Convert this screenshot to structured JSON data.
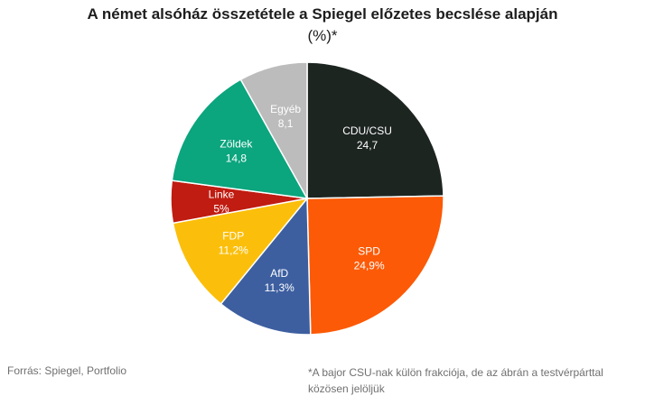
{
  "chart_data": {
    "type": "pie",
    "title": "A német alsóház összetétele a Spiegel előzetes becslése alapján",
    "subtitle": "(%)*",
    "slices": [
      {
        "label": "CDU/CSU",
        "value": 24.7,
        "value_text": "24,7",
        "color": "#1d2521"
      },
      {
        "label": "SPD",
        "value": 24.9,
        "value_text": "24,9%",
        "color": "#fc5a06"
      },
      {
        "label": "AfD",
        "value": 11.3,
        "value_text": "11,3%",
        "color": "#3d5fa0"
      },
      {
        "label": "FDP",
        "value": 11.2,
        "value_text": "11,2%",
        "color": "#fbbf0b"
      },
      {
        "label": "Linke",
        "value": 5,
        "value_text": "5%",
        "color": "#c01c11"
      },
      {
        "label": "Zöldek",
        "value": 14.8,
        "value_text": "14,8",
        "color": "#0ba57e"
      },
      {
        "label": "Egyéb",
        "value": 8.1,
        "value_text": "8,1",
        "color": "#bcbcbc"
      }
    ],
    "legend": "none"
  },
  "footer": {
    "source": "Forrás: Spiegel, Portfolio",
    "footnote": "*A bajor CSU-nak külön frakciója, de az ábrán a testvérpárttal közösen jelöljük"
  }
}
